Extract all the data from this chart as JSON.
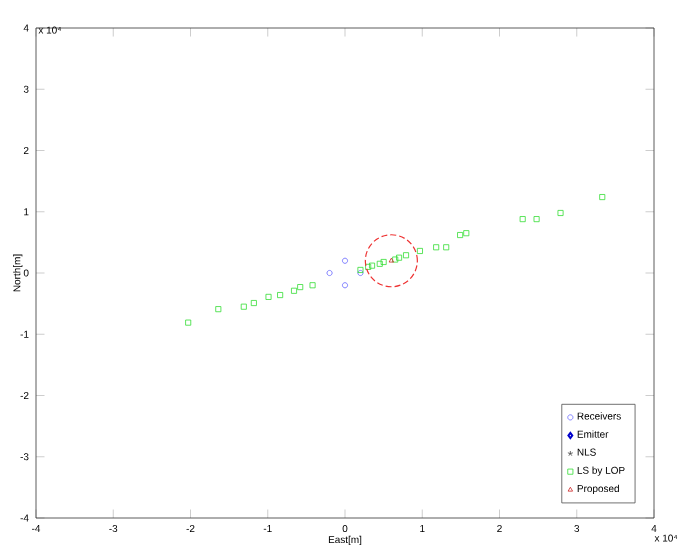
{
  "chart_data": {
    "type": "scatter",
    "xlabel": "East[m]",
    "ylabel": "North[m]",
    "annotations": [
      "x 10⁴",
      "x 10⁴"
    ],
    "xlim": [
      -4,
      4
    ],
    "ylim": [
      -4,
      4
    ],
    "xticks": [
      -4,
      -3,
      -2,
      -1,
      0,
      1,
      2,
      3,
      4
    ],
    "yticks": [
      -4,
      -3,
      -2,
      -1,
      0,
      1,
      2,
      3,
      4
    ],
    "grid": false,
    "legend": "bottom right",
    "series": [
      {
        "name": "Receivers",
        "marker": "circle",
        "color": "#6666ff",
        "x": [
          -0.2,
          0,
          0,
          0.2
        ],
        "values": [
          0,
          0.2,
          -0.2,
          0
        ]
      },
      {
        "name": "Emitter",
        "marker": "diamond",
        "color": "#0000cc"
      },
      {
        "name": "NLS",
        "marker": "star",
        "color": "#404040"
      },
      {
        "name": "LS by LOP",
        "marker": "square",
        "color": "#33dd33",
        "x": [
          -2.03,
          -1.64,
          -1.31,
          -1.18,
          -0.99,
          -0.84,
          -0.66,
          -0.58,
          -0.42,
          0.2,
          0.3,
          0.35,
          0.45,
          0.5,
          0.65,
          0.7,
          0.79,
          0.97,
          1.18,
          1.31,
          1.49,
          1.57,
          2.3,
          2.48,
          2.79,
          3.33
        ],
        "values": [
          -0.81,
          -0.59,
          -0.55,
          -0.49,
          -0.39,
          -0.36,
          -0.29,
          -0.23,
          -0.2,
          0.05,
          0.1,
          0.12,
          0.15,
          0.18,
          0.22,
          0.25,
          0.29,
          0.36,
          0.42,
          0.42,
          0.62,
          0.65,
          0.88,
          0.88,
          0.98,
          1.24
        ]
      },
      {
        "name": "Proposed",
        "marker": "triangle",
        "color": "#cc2222",
        "x": [
          0.6
        ],
        "values": [
          0.2
        ]
      }
    ]
  }
}
